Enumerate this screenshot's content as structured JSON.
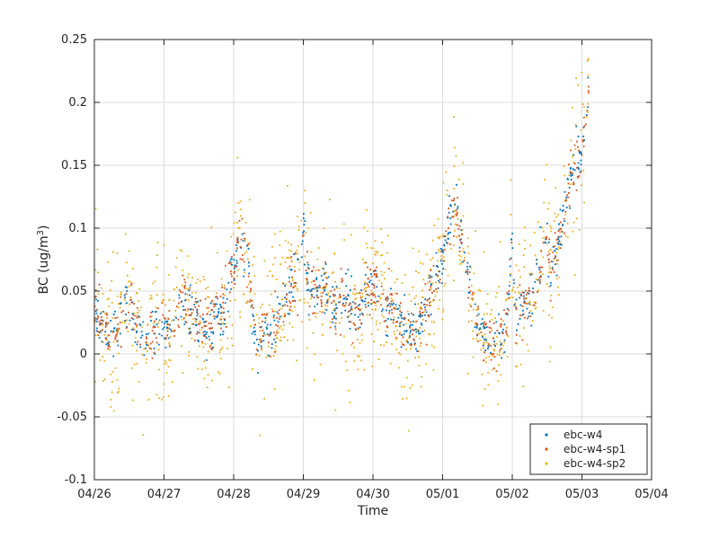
{
  "chart_data": {
    "type": "scatter",
    "title": "",
    "xlabel": "Time",
    "ylabel": "BC (ug/m³)",
    "ylabel_base": "BC (ug/m",
    "ylabel_sup": "3",
    "ylabel_end": ")",
    "x_ticks": [
      "04/26",
      "04/27",
      "04/28",
      "04/29",
      "04/30",
      "05/01",
      "05/02",
      "05/03",
      "05/04"
    ],
    "xlim": [
      "04/26",
      "05/04"
    ],
    "y_ticks": [
      "-0.1",
      "-0.05",
      "0",
      "0.05",
      "0.1",
      "0.15",
      "0.2",
      "0.25"
    ],
    "ylim": [
      -0.1,
      0.25
    ],
    "grid": true,
    "legend_position": "bottom-right",
    "series": [
      {
        "name": "ebc-w4",
        "color": "#0072BD",
        "noise": 0.01
      },
      {
        "name": "ebc-w4-sp1",
        "color": "#D95319",
        "noise": 0.011
      },
      {
        "name": "ebc-w4-sp2",
        "color": "#EDB120",
        "noise": 0.03
      }
    ],
    "trend": {
      "x_unit": "days since 04/26",
      "x": [
        0.0,
        0.1,
        0.2,
        0.35,
        0.5,
        0.6,
        0.75,
        0.9,
        1.0,
        1.15,
        1.3,
        1.45,
        1.6,
        1.75,
        1.9,
        2.0,
        2.1,
        2.2,
        2.3,
        2.35,
        2.45,
        2.55,
        2.65,
        2.8,
        2.95,
        3.0,
        3.05,
        3.15,
        3.3,
        3.45,
        3.6,
        3.75,
        3.9,
        4.0,
        4.15,
        4.3,
        4.5,
        4.6,
        4.75,
        4.9,
        5.0,
        5.1,
        5.2,
        5.25,
        5.35,
        5.5,
        5.6,
        5.7,
        5.8,
        5.9,
        5.95,
        6.0,
        6.05,
        6.1,
        6.2,
        6.3,
        6.4,
        6.5,
        6.55,
        6.6,
        6.7,
        6.8,
        6.9,
        7.0,
        7.05,
        7.1
      ],
      "y": [
        0.04,
        0.025,
        0.015,
        0.02,
        0.045,
        0.02,
        0.01,
        0.025,
        0.02,
        0.025,
        0.045,
        0.03,
        0.02,
        0.03,
        0.04,
        0.07,
        0.09,
        0.075,
        0.015,
        0.005,
        0.02,
        0.015,
        0.035,
        0.05,
        0.07,
        0.11,
        0.06,
        0.05,
        0.055,
        0.035,
        0.045,
        0.03,
        0.045,
        0.06,
        0.035,
        0.04,
        0.015,
        0.02,
        0.035,
        0.06,
        0.075,
        0.11,
        0.12,
        0.1,
        0.065,
        0.025,
        0.015,
        0.01,
        0.015,
        0.01,
        0.05,
        0.09,
        0.02,
        0.04,
        0.04,
        0.05,
        0.07,
        0.095,
        0.06,
        0.08,
        0.095,
        0.13,
        0.15,
        0.16,
        0.19,
        0.21
      ]
    }
  },
  "legend": {
    "items": [
      {
        "label": "ebc-w4",
        "color": "#0072BD"
      },
      {
        "label": "ebc-w4-sp1",
        "color": "#D95319"
      },
      {
        "label": "ebc-w4-sp2",
        "color": "#EDB120"
      }
    ]
  }
}
